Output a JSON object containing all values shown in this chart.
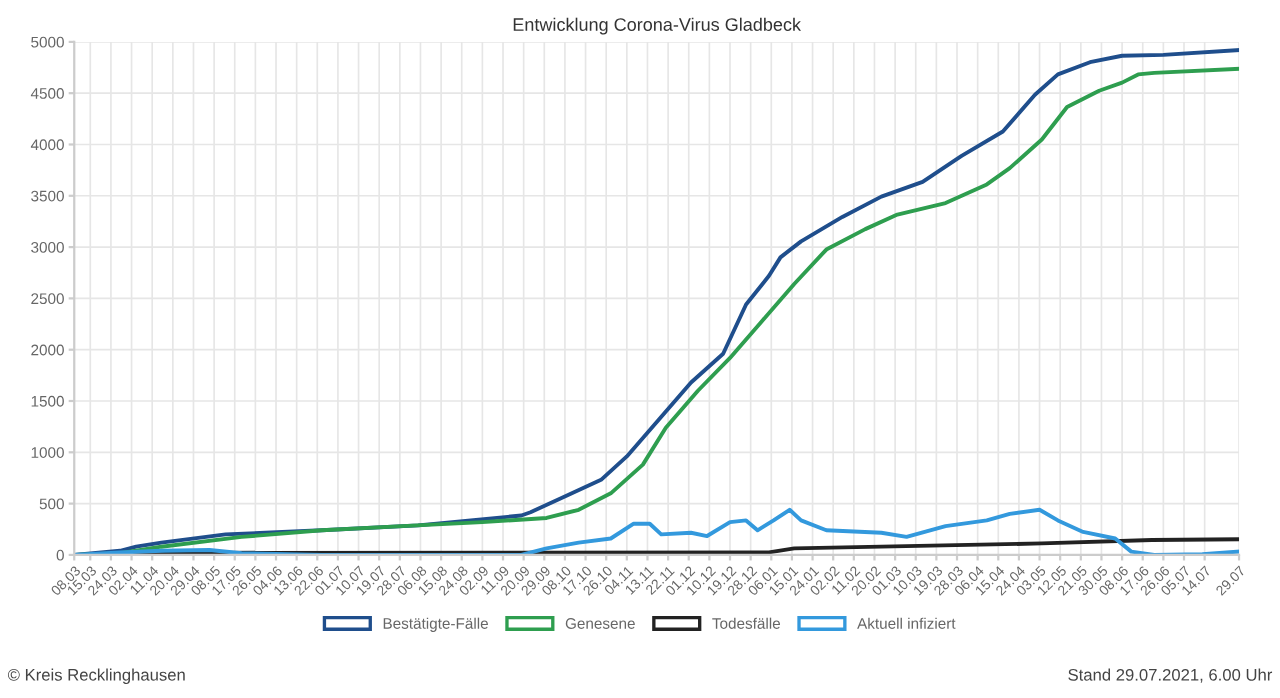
{
  "chart_data": {
    "type": "line",
    "title": "Entwicklung Corona-Virus Gladbeck",
    "xlim": [
      "2020-03-08",
      "2021-07-29"
    ],
    "xticks": [
      {
        "value": "2020-03-08",
        "label": "08.03"
      },
      {
        "value": "2020-03-15",
        "label": "15.03"
      },
      {
        "value": "2020-03-24",
        "label": "24.03"
      },
      {
        "value": "2020-04-02",
        "label": "02.04"
      },
      {
        "value": "2020-04-11",
        "label": "11.04"
      },
      {
        "value": "2020-04-20",
        "label": "20.04"
      },
      {
        "value": "2020-04-29",
        "label": "29.04"
      },
      {
        "value": "2020-05-08",
        "label": "08.05"
      },
      {
        "value": "2020-05-17",
        "label": "17.05"
      },
      {
        "value": "2020-05-26",
        "label": "26.05"
      },
      {
        "value": "2020-06-04",
        "label": "04.06"
      },
      {
        "value": "2020-06-13",
        "label": "13.06"
      },
      {
        "value": "2020-06-22",
        "label": "22.06"
      },
      {
        "value": "2020-07-01",
        "label": "01.07"
      },
      {
        "value": "2020-07-10",
        "label": "10.07"
      },
      {
        "value": "2020-07-19",
        "label": "19.07"
      },
      {
        "value": "2020-07-28",
        "label": "28.07"
      },
      {
        "value": "2020-08-06",
        "label": "06.08"
      },
      {
        "value": "2020-08-15",
        "label": "15.08"
      },
      {
        "value": "2020-08-24",
        "label": "24.08"
      },
      {
        "value": "2020-09-02",
        "label": "02.09"
      },
      {
        "value": "2020-09-11",
        "label": "11.09"
      },
      {
        "value": "2020-09-20",
        "label": "20.09"
      },
      {
        "value": "2020-09-29",
        "label": "29.09"
      },
      {
        "value": "2020-10-08",
        "label": "08.10"
      },
      {
        "value": "2020-10-17",
        "label": "17.10"
      },
      {
        "value": "2020-10-26",
        "label": "26.10"
      },
      {
        "value": "2020-11-04",
        "label": "04.11"
      },
      {
        "value": "2020-11-13",
        "label": "13.11"
      },
      {
        "value": "2020-11-22",
        "label": "22.11"
      },
      {
        "value": "2020-12-01",
        "label": "01.12"
      },
      {
        "value": "2020-12-10",
        "label": "10.12"
      },
      {
        "value": "2020-12-19",
        "label": "19.12"
      },
      {
        "value": "2020-12-28",
        "label": "28.12"
      },
      {
        "value": "2021-01-06",
        "label": "06.01"
      },
      {
        "value": "2021-01-15",
        "label": "15.01"
      },
      {
        "value": "2021-01-24",
        "label": "24.01"
      },
      {
        "value": "2021-02-02",
        "label": "02.02"
      },
      {
        "value": "2021-02-11",
        "label": "11.02"
      },
      {
        "value": "2021-02-20",
        "label": "20.02"
      },
      {
        "value": "2021-03-01",
        "label": "01.03"
      },
      {
        "value": "2021-03-10",
        "label": "10.03"
      },
      {
        "value": "2021-03-19",
        "label": "19.03"
      },
      {
        "value": "2021-03-28",
        "label": "28.03"
      },
      {
        "value": "2021-04-06",
        "label": "06.04"
      },
      {
        "value": "2021-04-15",
        "label": "15.04"
      },
      {
        "value": "2021-04-24",
        "label": "24.04"
      },
      {
        "value": "2021-05-03",
        "label": "03.05"
      },
      {
        "value": "2021-05-12",
        "label": "12.05"
      },
      {
        "value": "2021-05-21",
        "label": "21.05"
      },
      {
        "value": "2021-05-30",
        "label": "30.05"
      },
      {
        "value": "2021-06-08",
        "label": "08.06"
      },
      {
        "value": "2021-06-17",
        "label": "17.06"
      },
      {
        "value": "2021-06-26",
        "label": "26.06"
      },
      {
        "value": "2021-07-05",
        "label": "05.07"
      },
      {
        "value": "2021-07-14",
        "label": "14.07"
      },
      {
        "value": "2021-07-29",
        "label": "29.07"
      }
    ],
    "ylim": [
      0,
      5000
    ],
    "yticks": [
      0,
      500,
      1000,
      1500,
      2000,
      2500,
      3000,
      3500,
      4000,
      4500,
      5000
    ],
    "grid": true,
    "legend": "bottom",
    "marker": "none",
    "line_style": "solid",
    "series": [
      {
        "name": "Bestätigte-Fälle",
        "color": "#1f4e8c",
        "x": [
          "2020-03-08",
          "2020-03-28",
          "2020-04-04",
          "2020-04-15",
          "2020-05-13",
          "2020-06-24",
          "2020-08-05",
          "2020-09-19",
          "2020-09-23",
          "2020-10-07",
          "2020-10-24",
          "2020-11-04",
          "2020-11-18",
          "2020-12-02",
          "2020-12-16",
          "2020-12-26",
          "2021-01-05",
          "2021-01-10",
          "2021-01-19",
          "2021-02-06",
          "2021-02-23",
          "2021-03-13",
          "2021-03-30",
          "2021-04-17",
          "2021-05-01",
          "2021-05-11",
          "2021-05-25",
          "2021-06-08",
          "2021-06-26",
          "2021-07-29"
        ],
        "values": [
          0,
          40,
          80,
          120,
          200,
          240,
          288,
          384,
          416,
          560,
          736,
          960,
          1320,
          1680,
          1960,
          2440,
          2720,
          2900,
          3056,
          3294,
          3492,
          3635,
          3889,
          4127,
          4484,
          4683,
          4802,
          4865,
          4873,
          4920
        ]
      },
      {
        "name": "Genesene",
        "color": "#2e9e4f",
        "x": [
          "2020-03-08",
          "2020-03-28",
          "2020-04-15",
          "2020-05-20",
          "2020-06-24",
          "2020-07-29",
          "2020-09-02",
          "2020-09-30",
          "2020-10-14",
          "2020-10-28",
          "2020-11-11",
          "2020-11-21",
          "2020-12-05",
          "2020-12-19",
          "2021-01-02",
          "2021-01-16",
          "2021-01-30",
          "2021-02-16",
          "2021-03-02",
          "2021-03-23",
          "2021-04-10",
          "2021-04-20",
          "2021-05-04",
          "2021-05-15",
          "2021-05-29",
          "2021-06-08",
          "2021-06-15",
          "2021-06-22",
          "2021-07-29"
        ],
        "values": [
          0,
          16,
          80,
          176,
          240,
          280,
          320,
          360,
          440,
          600,
          880,
          1240,
          1600,
          1920,
          2280,
          2640,
          2976,
          3175,
          3317,
          3429,
          3611,
          3770,
          4048,
          4365,
          4524,
          4603,
          4683,
          4698,
          4738
        ]
      },
      {
        "name": "Todesfälle",
        "color": "#222222",
        "x": [
          "2020-03-08",
          "2020-03-28",
          "2020-05-07",
          "2021-01-05",
          "2021-01-16",
          "2021-05-04",
          "2021-06-21",
          "2021-07-29"
        ],
        "values": [
          0,
          0,
          20,
          25,
          64,
          112,
          145,
          152
        ]
      },
      {
        "name": "Aktuell infiziert",
        "color": "#3399dd",
        "x": [
          "2020-03-08",
          "2020-03-28",
          "2020-04-15",
          "2020-05-06",
          "2020-05-20",
          "2020-06-24",
          "2020-09-19",
          "2020-09-30",
          "2020-10-14",
          "2020-10-28",
          "2020-11-07",
          "2020-11-14",
          "2020-11-19",
          "2020-12-02",
          "2020-12-09",
          "2020-12-19",
          "2020-12-26",
          "2020-12-31",
          "2021-01-07",
          "2021-01-14",
          "2021-01-19",
          "2021-01-30",
          "2021-02-23",
          "2021-03-06",
          "2021-03-23",
          "2021-04-10",
          "2021-04-20",
          "2021-05-03",
          "2021-05-11",
          "2021-05-22",
          "2021-06-05",
          "2021-06-12",
          "2021-06-22",
          "2021-07-13",
          "2021-07-29"
        ],
        "values": [
          0,
          24,
          40,
          48,
          16,
          0,
          0,
          64,
          120,
          160,
          304,
          304,
          200,
          216,
          184,
          320,
          336,
          240,
          336,
          440,
          336,
          240,
          216,
          176,
          280,
          336,
          400,
          440,
          336,
          224,
          160,
          32,
          0,
          8,
          32
        ]
      }
    ],
    "annotations": [
      "© Kreis Recklinghausen",
      "Stand 29.07.2021, 6.00 Uhr"
    ]
  }
}
